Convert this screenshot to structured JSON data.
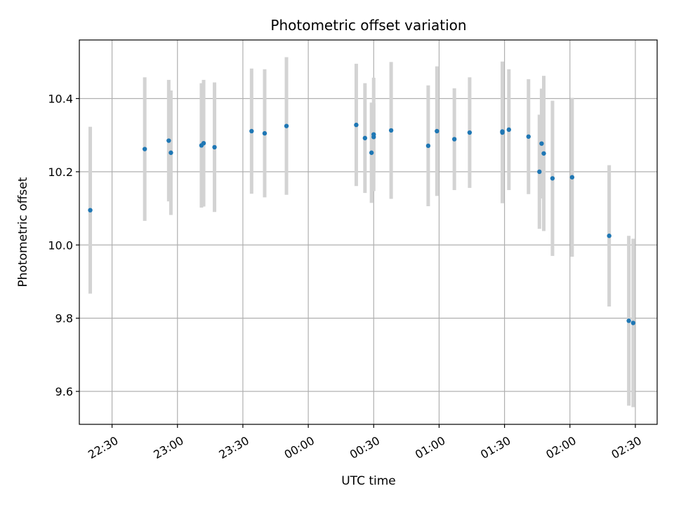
{
  "chart_data": {
    "type": "scatter",
    "title": "Photometric offset variation",
    "xlabel": "UTC time",
    "ylabel": "Photometric offset",
    "x_unit": "UTC time (HH:MM)",
    "xlim": [
      "22:15",
      "02:40"
    ],
    "ylim": [
      9.51,
      10.56
    ],
    "x_ticks": [
      "22:30",
      "23:00",
      "23:30",
      "00:00",
      "00:30",
      "01:00",
      "01:30",
      "02:00",
      "02:30"
    ],
    "y_ticks": [
      9.6,
      9.8,
      10.0,
      10.2,
      10.4
    ],
    "y_tick_labels": [
      "9.6",
      "9.8",
      "10.0",
      "10.2",
      "10.4"
    ],
    "grid": true,
    "point_color": "#1f77b4",
    "errorbar_color": "#d3d3d3",
    "series": [
      {
        "points": [
          {
            "x": "22:20",
            "y": 10.095,
            "err": 0.228
          },
          {
            "x": "22:45",
            "y": 10.262,
            "err": 0.196
          },
          {
            "x": "22:56",
            "y": 10.285,
            "err": 0.166
          },
          {
            "x": "22:57",
            "y": 10.252,
            "err": 0.17
          },
          {
            "x": "23:11",
            "y": 10.272,
            "err": 0.17
          },
          {
            "x": "23:12",
            "y": 10.278,
            "err": 0.173
          },
          {
            "x": "23:17",
            "y": 10.267,
            "err": 0.177
          },
          {
            "x": "23:34",
            "y": 10.311,
            "err": 0.171
          },
          {
            "x": "23:40",
            "y": 10.305,
            "err": 0.175
          },
          {
            "x": "23:50",
            "y": 10.325,
            "err": 0.188
          },
          {
            "x": "00:22",
            "y": 10.328,
            "err": 0.167
          },
          {
            "x": "00:26",
            "y": 10.292,
            "err": 0.15
          },
          {
            "x": "00:29",
            "y": 10.252,
            "err": 0.137
          },
          {
            "x": "00:30",
            "y": 10.295,
            "err": 0.092
          },
          {
            "x": "00:30",
            "y": 10.302,
            "err": 0.155
          },
          {
            "x": "00:38",
            "y": 10.313,
            "err": 0.187
          },
          {
            "x": "00:55",
            "y": 10.271,
            "err": 0.165
          },
          {
            "x": "00:59",
            "y": 10.311,
            "err": 0.177
          },
          {
            "x": "01:07",
            "y": 10.289,
            "err": 0.139
          },
          {
            "x": "01:14",
            "y": 10.307,
            "err": 0.151
          },
          {
            "x": "01:29",
            "y": 10.307,
            "err": 0.193
          },
          {
            "x": "01:29",
            "y": 10.31,
            "err": 0.191
          },
          {
            "x": "01:32",
            "y": 10.315,
            "err": 0.165
          },
          {
            "x": "01:41",
            "y": 10.296,
            "err": 0.157
          },
          {
            "x": "01:46",
            "y": 10.2,
            "err": 0.156
          },
          {
            "x": "01:47",
            "y": 10.277,
            "err": 0.15
          },
          {
            "x": "01:48",
            "y": 10.25,
            "err": 0.212
          },
          {
            "x": "01:52",
            "y": 10.182,
            "err": 0.212
          },
          {
            "x": "02:01",
            "y": 10.185,
            "err": 0.217
          },
          {
            "x": "02:18",
            "y": 10.025,
            "err": 0.193
          },
          {
            "x": "02:27",
            "y": 9.793,
            "err": 0.232
          },
          {
            "x": "02:29",
            "y": 9.787,
            "err": 0.23
          }
        ]
      }
    ]
  }
}
